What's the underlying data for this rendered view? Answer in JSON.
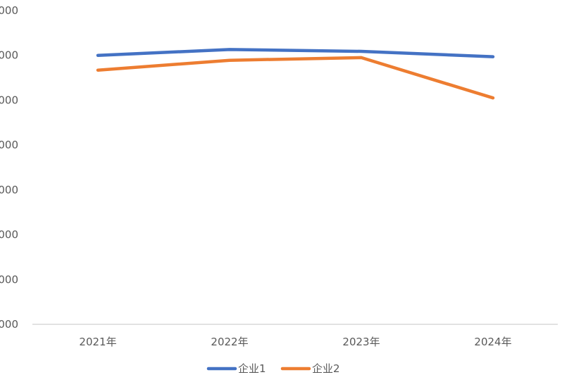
{
  "chart_data": {
    "type": "line",
    "categories": [
      "2021年",
      "2022年",
      "2023年",
      "2024年"
    ],
    "y_tick_labels": [
      "000",
      "000",
      "000",
      "000",
      "000",
      "000",
      "000",
      "000"
    ],
    "series": [
      {
        "name": "企业1",
        "values": [
          6000,
          6130,
          6090,
          5970
        ],
        "color": "#4472C4"
      },
      {
        "name": "企业2",
        "values": [
          5670,
          5890,
          5950,
          5050
        ],
        "color": "#ED7D31"
      }
    ],
    "ylim": [
      0,
      7000
    ],
    "grid": false,
    "legend_position": "bottom",
    "title": "",
    "xlabel": "",
    "ylabel": ""
  }
}
